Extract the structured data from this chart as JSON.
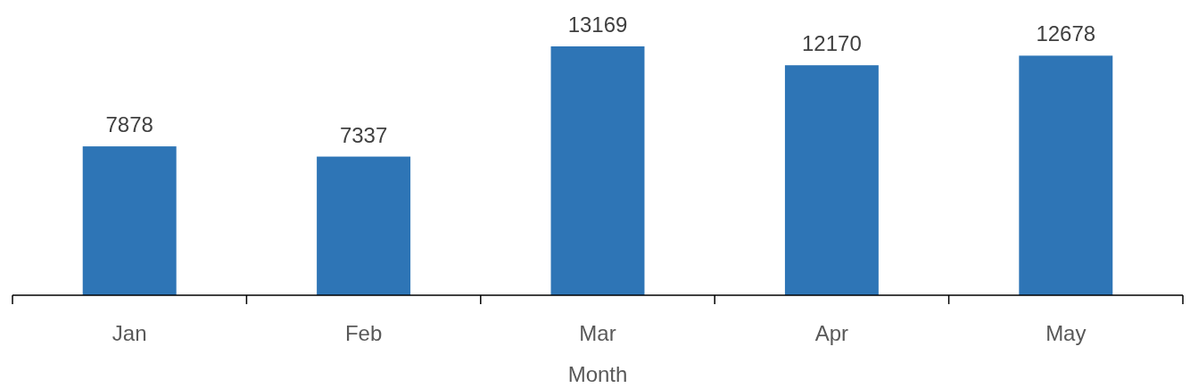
{
  "chart_data": {
    "type": "bar",
    "xlabel": "Month",
    "categories": [
      "Jan",
      "Feb",
      "Mar",
      "Apr",
      "May"
    ],
    "values": [
      7878,
      7337,
      13169,
      12170,
      12678
    ],
    "color": "#2e75b6",
    "data_labels": true
  }
}
